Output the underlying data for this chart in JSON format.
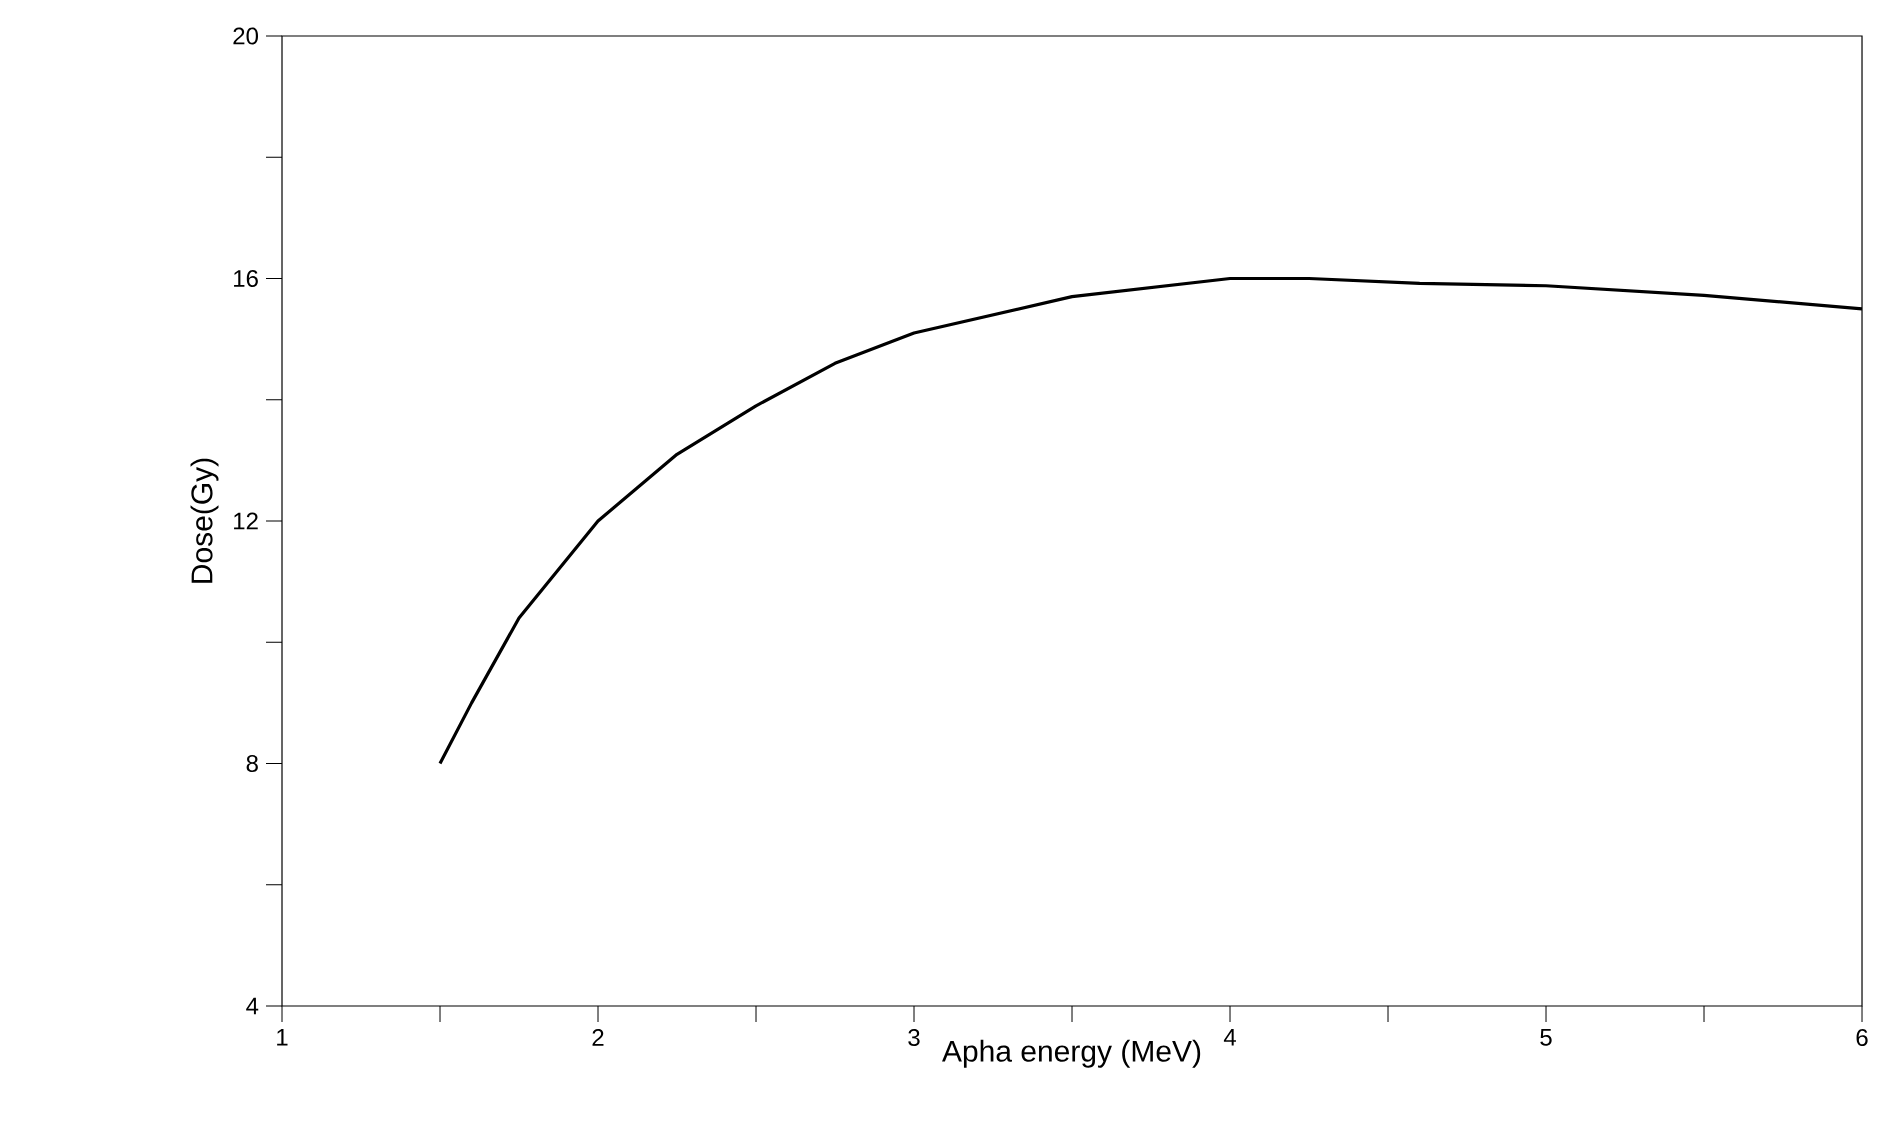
{
  "chart_data": {
    "type": "line",
    "xlabel": "Apha energy (MeV)",
    "ylabel": "Dose(Gy)",
    "xlim": [
      1,
      6
    ],
    "ylim": [
      4,
      20
    ],
    "xticks": [
      1,
      {
        "value": 1.5,
        "label": null
      },
      2,
      {
        "value": 2.5,
        "label": null
      },
      3,
      {
        "value": 3.5,
        "label": null
      },
      4,
      {
        "value": 4.5,
        "label": null
      },
      5,
      {
        "value": 5.5,
        "label": null
      },
      6
    ],
    "yticks": [
      4,
      {
        "value": 6,
        "label": null
      },
      8,
      {
        "value": 10,
        "label": null
      },
      12,
      {
        "value": 14,
        "label": null
      },
      16,
      {
        "value": 18,
        "label": null
      },
      20
    ],
    "grid": false,
    "legend": false,
    "marker": "none",
    "line_style": "solid",
    "series": [
      {
        "color": "#000000",
        "x": [
          1.5,
          1.6,
          1.75,
          2.0,
          2.25,
          2.5,
          2.75,
          3.0,
          3.5,
          4.0,
          4.25,
          4.6,
          5.0,
          5.5,
          6.0
        ],
        "values": [
          8.0,
          9.0,
          10.4,
          12.0,
          13.1,
          13.9,
          14.6,
          15.1,
          15.7,
          16.0,
          16.0,
          15.92,
          15.88,
          15.72,
          15.5
        ]
      }
    ]
  }
}
